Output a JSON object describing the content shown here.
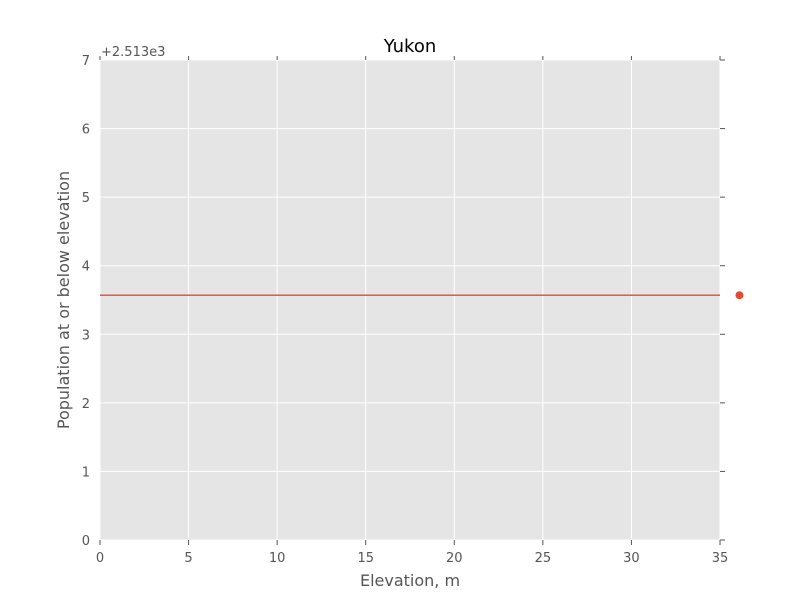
{
  "chart_data": {
    "type": "line",
    "title": "Yukon",
    "xlabel": "Elevation, m",
    "ylabel": "Population at or below elevation",
    "y_offset_text": "+2.513e3",
    "xlim": [
      0,
      35
    ],
    "ylim": [
      0,
      7
    ],
    "x_ticks": [
      0,
      5,
      10,
      15,
      20,
      25,
      30,
      35
    ],
    "y_ticks": [
      0,
      1,
      2,
      3,
      4,
      5,
      6,
      7
    ],
    "grid": true,
    "background_color": "#e5e5e5",
    "series": [
      {
        "color": "#e24a33",
        "x": [
          0,
          35
        ],
        "y": [
          3.57,
          3.57
        ],
        "marker_x": 36.1,
        "marker_y": 3.57
      }
    ]
  }
}
